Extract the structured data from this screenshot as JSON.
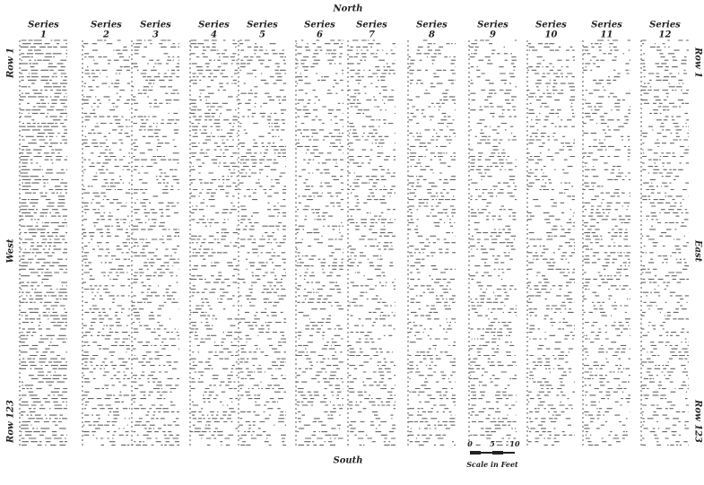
{
  "header": {
    "title": "North"
  },
  "bottom": {
    "label": "South"
  },
  "sides": {
    "left": "West",
    "right": "East"
  },
  "rows": {
    "first_left": "Row 1",
    "last_left": "Row 123",
    "first_right": "Row 1",
    "last_right": "Row 123"
  },
  "columns": [
    {
      "label": "Series",
      "number": "1"
    },
    {
      "label": "Series",
      "number": "2"
    },
    {
      "label": "Series",
      "number": "3"
    },
    {
      "label": "Series",
      "number": "4"
    },
    {
      "label": "Series",
      "number": "5"
    },
    {
      "label": "Series",
      "number": "6"
    },
    {
      "label": "Series",
      "number": "7"
    },
    {
      "label": "Series",
      "number": "8"
    },
    {
      "label": "Series",
      "number": "9"
    },
    {
      "label": "Series",
      "number": "10"
    },
    {
      "label": "Series",
      "number": "11"
    },
    {
      "label": "Series",
      "number": "12"
    }
  ],
  "scale": {
    "ticks": [
      "0",
      "5",
      "10"
    ],
    "caption": "Scale in Feet"
  }
}
